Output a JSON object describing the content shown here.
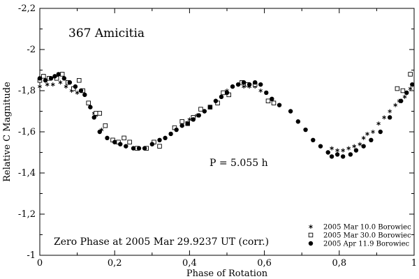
{
  "chart_data": {
    "type": "scatter",
    "title": "367 Amicitia",
    "xlabel": "Phase of Rotation",
    "ylabel": "Relative C Magnitude",
    "xlim": [
      0,
      1
    ],
    "ylim": [
      -2.2,
      -1.0
    ],
    "y_inverted": true,
    "x_ticks": [
      "0",
      "0,2",
      "0,4",
      "0,6",
      "0,8",
      "1"
    ],
    "x_tick_values": [
      0,
      0.2,
      0.4,
      0.6,
      0.8,
      1.0
    ],
    "y_ticks": [
      "-2,2",
      "-2",
      "-1,8",
      "-1,6",
      "-1,4",
      "-1,2",
      "-1"
    ],
    "y_tick_values": [
      -2.2,
      -2.0,
      -1.8,
      -1.6,
      -1.4,
      -1.2,
      -1.0
    ],
    "annotations": {
      "period": "P = 5.055 h",
      "zero_phase": "Zero Phase at 2005 Mar 29.9237 UT (corr.)"
    },
    "legend_position": "bottom-right",
    "series": [
      {
        "name": "2005 Mar 10.0 Borowiec",
        "marker": "asterisk",
        "x": [
          0.0,
          0.02,
          0.035,
          0.055,
          0.07,
          0.085,
          0.1,
          0.145,
          0.15,
          0.165,
          0.5,
          0.515,
          0.53,
          0.545,
          0.56,
          0.575,
          0.59,
          0.4,
          0.42,
          0.78,
          0.795,
          0.81,
          0.825,
          0.84,
          0.855,
          0.865,
          0.875,
          0.89,
          0.905,
          0.92,
          0.935,
          0.95,
          0.96,
          0.975,
          0.99
        ],
        "y": [
          -1.82,
          -1.83,
          -1.83,
          -1.84,
          -1.82,
          -1.8,
          -1.79,
          -1.69,
          -1.68,
          -1.61,
          -1.8,
          -1.82,
          -1.83,
          -1.82,
          -1.82,
          -1.82,
          -1.8,
          -1.66,
          -1.68,
          -1.52,
          -1.51,
          -1.51,
          -1.52,
          -1.53,
          -1.54,
          -1.57,
          -1.59,
          -1.6,
          -1.64,
          -1.67,
          -1.7,
          -1.73,
          -1.75,
          -1.77,
          -1.81
        ]
      },
      {
        "name": "2005 Mar 30.0 Borowiec",
        "marker": "square",
        "x": [
          0.0,
          0.01,
          0.025,
          0.045,
          0.06,
          0.075,
          0.09,
          0.105,
          0.115,
          0.13,
          0.15,
          0.16,
          0.175,
          0.195,
          0.21,
          0.225,
          0.24,
          0.26,
          0.285,
          0.305,
          0.32,
          0.36,
          0.38,
          0.395,
          0.41,
          0.43,
          0.455,
          0.475,
          0.49,
          0.505,
          0.54,
          0.555,
          0.575,
          0.61,
          0.625,
          0.955,
          0.97,
          0.99
        ],
        "y": [
          -1.85,
          -1.87,
          -1.86,
          -1.86,
          -1.88,
          -1.84,
          -1.81,
          -1.85,
          -1.8,
          -1.74,
          -1.69,
          -1.69,
          -1.63,
          -1.56,
          -1.55,
          -1.57,
          -1.55,
          -1.52,
          -1.52,
          -1.55,
          -1.53,
          -1.62,
          -1.65,
          -1.64,
          -1.67,
          -1.71,
          -1.72,
          -1.74,
          -1.79,
          -1.78,
          -1.84,
          -1.83,
          -1.83,
          -1.75,
          -1.74,
          -1.81,
          -1.8,
          -1.88
        ]
      },
      {
        "name": "2005 Apr 11.9 Borowiec",
        "marker": "circle",
        "x": [
          0.0,
          0.015,
          0.03,
          0.04,
          0.05,
          0.065,
          0.08,
          0.095,
          0.11,
          0.12,
          0.135,
          0.145,
          0.16,
          0.18,
          0.2,
          0.215,
          0.23,
          0.25,
          0.265,
          0.28,
          0.3,
          0.32,
          0.335,
          0.35,
          0.365,
          0.38,
          0.395,
          0.41,
          0.425,
          0.44,
          0.455,
          0.47,
          0.485,
          0.5,
          0.515,
          0.53,
          0.545,
          0.56,
          0.575,
          0.59,
          0.605,
          0.62,
          0.64,
          0.67,
          0.69,
          0.71,
          0.73,
          0.75,
          0.77,
          0.78,
          0.795,
          0.81,
          0.83,
          0.845,
          0.865,
          0.885,
          0.91,
          0.935,
          0.965,
          0.98,
          0.995
        ],
        "y": [
          -1.86,
          -1.85,
          -1.86,
          -1.87,
          -1.88,
          -1.86,
          -1.84,
          -1.82,
          -1.8,
          -1.78,
          -1.72,
          -1.67,
          -1.6,
          -1.57,
          -1.55,
          -1.54,
          -1.53,
          -1.52,
          -1.52,
          -1.52,
          -1.54,
          -1.56,
          -1.57,
          -1.59,
          -1.61,
          -1.63,
          -1.64,
          -1.66,
          -1.68,
          -1.7,
          -1.72,
          -1.75,
          -1.77,
          -1.79,
          -1.82,
          -1.83,
          -1.84,
          -1.83,
          -1.84,
          -1.83,
          -1.79,
          -1.76,
          -1.73,
          -1.7,
          -1.65,
          -1.61,
          -1.56,
          -1.53,
          -1.5,
          -1.48,
          -1.49,
          -1.48,
          -1.49,
          -1.51,
          -1.53,
          -1.56,
          -1.6,
          -1.67,
          -1.75,
          -1.79,
          -1.83
        ]
      }
    ]
  }
}
